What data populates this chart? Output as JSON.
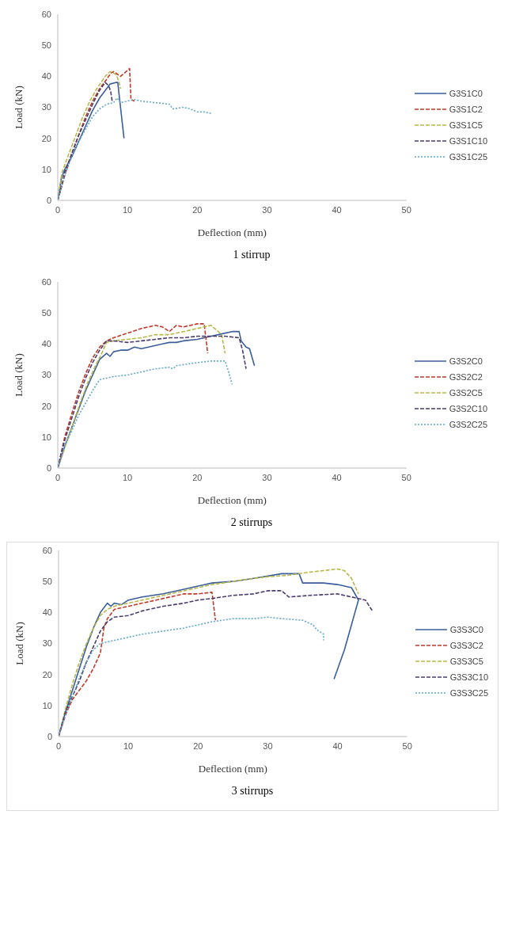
{
  "chart_data": [
    {
      "type": "line",
      "xlabel": "Deflection (mm)",
      "ylabel": "Load (kN)",
      "annotations": [
        "1 stirrup"
      ],
      "xlim": [
        0,
        50
      ],
      "xticks": [
        0,
        10,
        20,
        30,
        40,
        50
      ],
      "ylim": [
        0,
        60
      ],
      "yticks": [
        0,
        10,
        20,
        30,
        40,
        50,
        60
      ],
      "grid": false,
      "legend": "right",
      "marker": "none",
      "series": [
        {
          "name": "G3S1C0",
          "color": "#3b5e9b",
          "line_style": "solid",
          "x": [
            0,
            0.5,
            1,
            2,
            3,
            4,
            5,
            6,
            7,
            7.5,
            8.3,
            8.6,
            9.5
          ],
          "values": [
            0,
            7,
            10,
            14,
            19,
            24,
            29,
            33,
            36,
            37.5,
            38,
            38,
            20
          ]
        },
        {
          "name": "G3S1C2",
          "color": "#c0392b",
          "line_style": "dashed",
          "x": [
            0,
            1,
            2,
            3,
            4,
            5,
            6,
            7,
            7.6,
            8,
            9,
            10.3,
            10.5,
            11
          ],
          "values": [
            0,
            8,
            15,
            21,
            27,
            32,
            36,
            39,
            41,
            41.5,
            40,
            42.5,
            32.5,
            32
          ]
        },
        {
          "name": "G3S1C5",
          "color": "#b8b84a",
          "line_style": "dashed",
          "x": [
            0,
            0.6,
            1.6,
            2.6,
            3.6,
            4.6,
            5.6,
            6.8,
            7.5,
            8,
            8.4,
            8.8,
            9
          ],
          "values": [
            0,
            9,
            15,
            21,
            27,
            32,
            36,
            40,
            41.5,
            41,
            40.5,
            38,
            36
          ]
        },
        {
          "name": "G3S1C10",
          "color": "#4a3d6e",
          "line_style": "dashed",
          "x": [
            0,
            1,
            2,
            3,
            4,
            5,
            6,
            6.8,
            7.3,
            7.6,
            7.8
          ],
          "values": [
            0,
            9,
            15,
            21,
            26,
            31,
            35.5,
            38,
            37,
            35,
            32
          ]
        },
        {
          "name": "G3S1C25",
          "color": "#5fa8c8",
          "line_style": "dotted",
          "x": [
            0,
            1,
            2,
            3,
            4,
            5,
            6,
            7,
            8,
            8.5,
            9,
            10,
            11,
            12,
            14,
            16,
            16.5,
            18,
            19,
            20,
            21,
            22
          ],
          "values": [
            0,
            8,
            14,
            19,
            23,
            27,
            29.5,
            31,
            31.5,
            33,
            31.5,
            32,
            32.5,
            32,
            31.5,
            31,
            29.5,
            30,
            29.5,
            28.5,
            28.5,
            28
          ]
        }
      ]
    },
    {
      "type": "line",
      "xlabel": "Deflection (mm)",
      "ylabel": "Load (kN)",
      "annotations": [
        "2 stirrups"
      ],
      "xlim": [
        0,
        50
      ],
      "xticks": [
        0,
        10,
        20,
        30,
        40,
        50
      ],
      "ylim": [
        0,
        60
      ],
      "yticks": [
        0,
        10,
        20,
        30,
        40,
        50,
        60
      ],
      "grid": false,
      "legend": "right",
      "marker": "none",
      "series": [
        {
          "name": "G3S2C0",
          "color": "#3b5e9b",
          "line_style": "solid",
          "x": [
            0,
            1,
            2,
            3,
            4,
            5,
            6,
            7,
            7.5,
            8,
            9,
            10,
            11,
            12,
            13,
            14,
            15,
            16,
            17,
            18,
            20,
            22,
            24,
            25,
            26,
            26.3,
            27,
            27.5,
            28.2
          ],
          "values": [
            0,
            7,
            13,
            19,
            25,
            30,
            35,
            37,
            36,
            37.5,
            38,
            38,
            39,
            38.5,
            39,
            39.5,
            40,
            40.5,
            40.5,
            41,
            41.5,
            42.5,
            43.5,
            44,
            44,
            41,
            39,
            38.5,
            33
          ]
        },
        {
          "name": "G3S2C2",
          "color": "#c0392b",
          "line_style": "dashed",
          "x": [
            0,
            1,
            2,
            3,
            4,
            5,
            6,
            7,
            8,
            10,
            12,
            14,
            15,
            16,
            17,
            18,
            20,
            21,
            21.5
          ],
          "values": [
            0,
            10,
            17.5,
            24.5,
            30.5,
            35.5,
            39,
            41,
            42,
            43.5,
            45,
            46,
            45.5,
            44,
            46,
            45.5,
            46.5,
            46.5,
            37
          ]
        },
        {
          "name": "G3S2C5",
          "color": "#b8b84a",
          "line_style": "dashed",
          "x": [
            0,
            1.3,
            2.3,
            3.3,
            4.3,
            5.3,
            6.3,
            7,
            8,
            10,
            12,
            14,
            16,
            18,
            20,
            22,
            23,
            23.5,
            24
          ],
          "values": [
            0,
            8.5,
            15,
            21.5,
            27.5,
            32.5,
            37,
            40.5,
            41,
            41.5,
            42,
            43,
            43,
            44,
            45,
            46,
            44,
            43,
            37
          ]
        },
        {
          "name": "G3S2C10",
          "color": "#4a3d6e",
          "line_style": "dashed",
          "x": [
            0,
            1,
            2,
            3,
            4,
            5,
            6,
            7,
            8,
            10,
            12,
            14,
            16,
            18,
            20,
            24,
            26,
            26.5,
            27
          ],
          "values": [
            0,
            9,
            16,
            23,
            29,
            34,
            38,
            41,
            41,
            40.5,
            41,
            41.5,
            42,
            42,
            42.5,
            42.5,
            42,
            38,
            32
          ]
        },
        {
          "name": "G3S2C25",
          "color": "#5fa8c8",
          "line_style": "dotted",
          "x": [
            0,
            1,
            2,
            3,
            4,
            5,
            6,
            7,
            8,
            10,
            12,
            14,
            16,
            16.5,
            17,
            20,
            22,
            24,
            24.5,
            25
          ],
          "values": [
            0,
            7,
            12,
            17,
            21,
            25,
            28.5,
            29,
            29.5,
            30,
            31,
            32,
            32.5,
            32,
            33,
            34,
            34.5,
            34.5,
            31,
            27
          ]
        }
      ]
    },
    {
      "type": "line",
      "xlabel": "Deflection (mm)",
      "ylabel": "Load (kN)",
      "annotations": [
        "3 stirrups"
      ],
      "xlim": [
        0,
        50
      ],
      "xticks": [
        0,
        10,
        20,
        30,
        40,
        50
      ],
      "ylim": [
        0,
        60
      ],
      "yticks": [
        0,
        10,
        20,
        30,
        40,
        50,
        60
      ],
      "grid": false,
      "legend": "right",
      "marker": "none",
      "series": [
        {
          "name": "G3S3C0",
          "color": "#3b5e9b",
          "line_style": "solid",
          "x": [
            0,
            1,
            2,
            3,
            4,
            5,
            6,
            7,
            7.5,
            8,
            9,
            10,
            12,
            15,
            18,
            20,
            22,
            25,
            28,
            32,
            34.5,
            35,
            38,
            40,
            42,
            43,
            42,
            41,
            39.5
          ],
          "values": [
            0,
            8,
            15,
            22,
            29,
            35,
            40,
            43,
            42,
            43,
            42.5,
            44,
            45,
            46,
            47.5,
            48.5,
            49.5,
            50,
            51,
            52.5,
            52.5,
            49.5,
            49.5,
            49,
            48,
            44,
            36,
            28,
            18.5
          ]
        },
        {
          "name": "G3S3C2",
          "color": "#c0392b",
          "line_style": "dashed",
          "x": [
            0,
            1,
            2,
            3,
            4,
            5,
            6,
            6.5,
            7,
            8,
            10,
            12,
            14,
            16,
            18,
            20,
            22,
            22.5
          ],
          "values": [
            0,
            7,
            12,
            15,
            18,
            22,
            27,
            35,
            38,
            41,
            42,
            43,
            44,
            45,
            46,
            46,
            46.5,
            37.5
          ]
        },
        {
          "name": "G3S3C5",
          "color": "#b8b84a",
          "line_style": "dashed",
          "x": [
            0,
            1,
            2,
            3,
            4,
            5,
            6,
            7,
            8,
            10,
            12,
            15,
            18,
            20,
            22,
            25,
            28,
            30,
            33,
            36,
            40,
            41,
            42,
            43
          ],
          "values": [
            0,
            9,
            17,
            24,
            30,
            35,
            39,
            41,
            42,
            43,
            44,
            45.5,
            47,
            48,
            49,
            50,
            51,
            51.5,
            52,
            53,
            54,
            53.5,
            51,
            46
          ]
        },
        {
          "name": "G3S3C10",
          "color": "#4a3d6e",
          "line_style": "dashed",
          "x": [
            0,
            1,
            2,
            3,
            4,
            5,
            6,
            7,
            8,
            10,
            12,
            15,
            18,
            20,
            22,
            25,
            28,
            30,
            32,
            33,
            36,
            40,
            42,
            44,
            45
          ],
          "values": [
            0,
            8,
            13,
            18,
            24,
            29,
            34,
            37,
            38.5,
            39,
            40.5,
            42,
            43,
            44,
            44.5,
            45.5,
            46,
            47,
            47,
            45,
            45.5,
            46,
            45,
            44,
            40.5
          ]
        },
        {
          "name": "G3S3C25",
          "color": "#5fa8c8",
          "line_style": "dotted",
          "x": [
            0,
            1,
            2,
            3,
            4,
            5,
            6,
            7,
            8,
            10,
            12,
            15,
            18,
            20,
            22,
            25,
            28,
            30,
            32,
            35,
            36.5,
            37,
            38,
            38
          ],
          "values": [
            0,
            7,
            13,
            19,
            24,
            28,
            30,
            30.5,
            31,
            32,
            33,
            34,
            35,
            36,
            37,
            38,
            38,
            38.5,
            38,
            37.5,
            36,
            34.5,
            33,
            31
          ]
        }
      ]
    }
  ]
}
